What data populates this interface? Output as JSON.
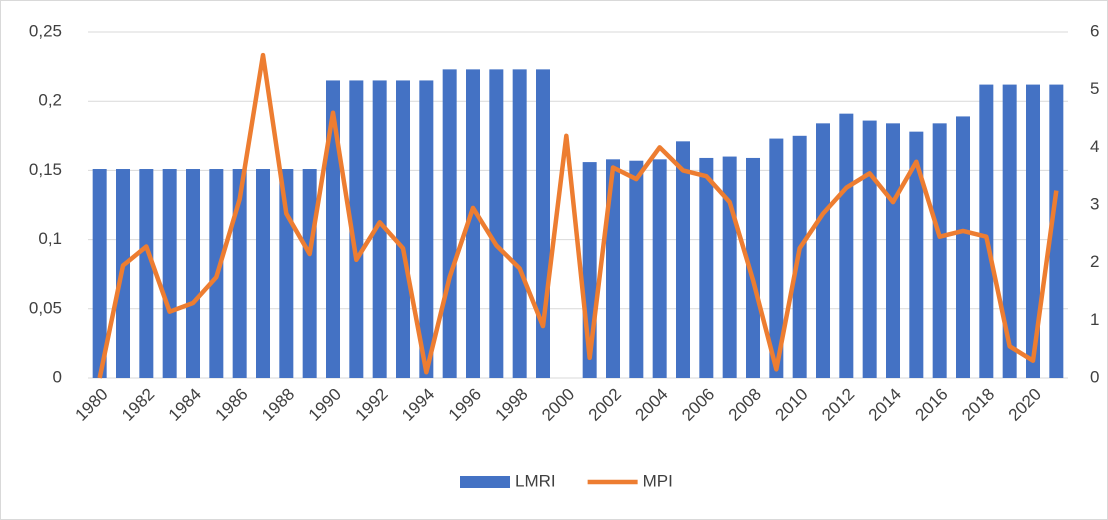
{
  "chart_data": {
    "type": "bar_line",
    "categories": [
      "1980",
      null,
      "1982",
      null,
      "1984",
      null,
      "1986",
      null,
      "1988",
      null,
      "1990",
      null,
      "1992",
      null,
      "1994",
      null,
      "1996",
      null,
      "1998",
      null,
      "2000",
      null,
      "2002",
      null,
      "2004",
      null,
      "2006",
      null,
      "2008",
      null,
      "2010",
      null,
      "2012",
      null,
      "2014",
      null,
      "2016",
      null,
      "2018",
      null,
      "2020",
      null
    ],
    "series": [
      {
        "name": "LMRI",
        "type": "bar",
        "color": "#4472c4",
        "values": [
          0.151,
          0.151,
          0.151,
          0.151,
          0.151,
          0.151,
          0.151,
          0.151,
          0.151,
          0.151,
          0.215,
          0.215,
          0.215,
          0.215,
          0.215,
          0.223,
          0.223,
          0.223,
          0.223,
          0.223,
          null,
          0.156,
          0.158,
          0.157,
          0.158,
          0.171,
          0.159,
          0.16,
          0.159,
          0.173,
          0.175,
          0.184,
          0.191,
          0.186,
          0.184,
          0.178,
          0.184,
          0.189,
          0.212,
          0.212,
          0.212,
          0.212
        ]
      },
      {
        "name": "MPI",
        "type": "line",
        "axis": "y2",
        "color": "#ed7d31",
        "values": [
          0,
          1.95,
          2.28,
          1.15,
          1.3,
          1.75,
          3.1,
          5.6,
          2.85,
          2.15,
          4.6,
          2.05,
          2.7,
          2.25,
          0.1,
          1.75,
          2.95,
          2.3,
          1.9,
          0.9,
          4.2,
          0.35,
          3.65,
          3.45,
          4.0,
          3.6,
          3.5,
          3.05,
          1.7,
          0.15,
          2.25,
          2.85,
          3.3,
          3.55,
          3.05,
          3.75,
          2.45,
          2.55,
          2.45,
          0.55,
          0.3,
          3.25
        ]
      }
    ],
    "ylim": [
      0,
      0.25
    ],
    "yticks": [
      0,
      {
        "value": 0.05,
        "label": "0,05"
      },
      {
        "value": 0.1,
        "label": "0,1"
      },
      {
        "value": 0.15,
        "label": "0,15"
      },
      {
        "value": 0.2,
        "label": "0,2"
      },
      {
        "value": 0.25,
        "label": "0,25"
      }
    ],
    "y2lim": [
      0,
      6
    ],
    "y2ticks": [
      0,
      1,
      2,
      3,
      4,
      5,
      6
    ],
    "grid": true,
    "legend": "bottom"
  }
}
